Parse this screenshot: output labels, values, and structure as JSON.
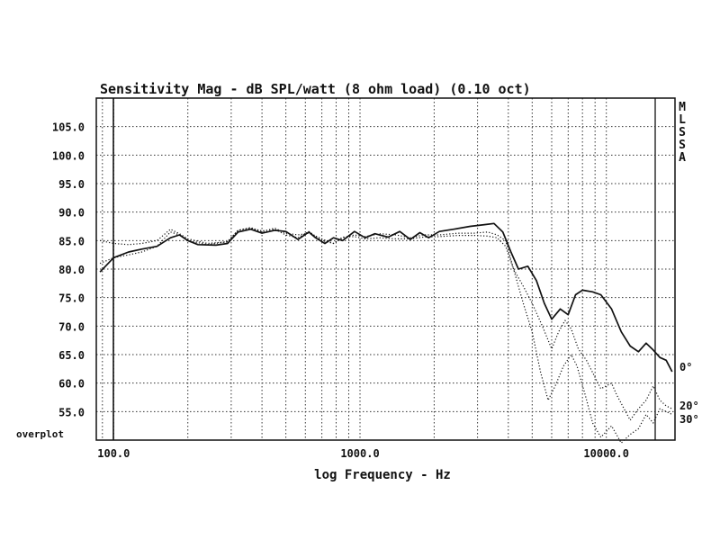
{
  "chart_data": {
    "type": "line",
    "title": "Sensitivity Mag - dB SPL/watt (8 ohm load) (0.10 oct)",
    "xlabel": "log Frequency - Hz",
    "ylabel": "",
    "x_scale": "log",
    "xlim": [
      85,
      19000
    ],
    "ylim": [
      50,
      110
    ],
    "y_ticks": [
      "105.0",
      "100.0",
      "95.0",
      "90.0",
      "85.0",
      "80.0",
      "75.0",
      "70.0",
      "65.0",
      "60.0",
      "55.0"
    ],
    "x_tick_labels": [
      {
        "value": 100,
        "label": "100.0"
      },
      {
        "value": 1000,
        "label": "1000.0"
      },
      {
        "value": 10000,
        "label": "10000.0"
      }
    ],
    "bottom_label": "overplot",
    "side_label_letters": [
      "M",
      "L",
      "S",
      "S",
      "A"
    ],
    "grid": true,
    "series": [
      {
        "name": "0°",
        "style": "solid",
        "points": [
          [
            88,
            79.5
          ],
          [
            100,
            82
          ],
          [
            115,
            83
          ],
          [
            130,
            83.5
          ],
          [
            150,
            84
          ],
          [
            170,
            85.5
          ],
          [
            185,
            86
          ],
          [
            200,
            85
          ],
          [
            220,
            84.3
          ],
          [
            260,
            84.2
          ],
          [
            290,
            84.5
          ],
          [
            320,
            86.5
          ],
          [
            360,
            87
          ],
          [
            400,
            86.3
          ],
          [
            450,
            86.8
          ],
          [
            500,
            86.6
          ],
          [
            560,
            85.2
          ],
          [
            620,
            86.5
          ],
          [
            660,
            85.5
          ],
          [
            720,
            84.5
          ],
          [
            780,
            85.5
          ],
          [
            850,
            85
          ],
          [
            950,
            86.6
          ],
          [
            1050,
            85.5
          ],
          [
            1150,
            86.2
          ],
          [
            1300,
            85.6
          ],
          [
            1450,
            86.6
          ],
          [
            1600,
            85.2
          ],
          [
            1750,
            86.4
          ],
          [
            1900,
            85.5
          ],
          [
            2100,
            86.6
          ],
          [
            2400,
            87
          ],
          [
            2800,
            87.5
          ],
          [
            3200,
            87.8
          ],
          [
            3500,
            88
          ],
          [
            3800,
            86.5
          ],
          [
            4100,
            83
          ],
          [
            4400,
            80
          ],
          [
            4800,
            80.5
          ],
          [
            5200,
            78
          ],
          [
            5600,
            74
          ],
          [
            6000,
            71.2
          ],
          [
            6500,
            73
          ],
          [
            7000,
            72
          ],
          [
            7500,
            75.5
          ],
          [
            8000,
            76.3
          ],
          [
            8800,
            76
          ],
          [
            9500,
            75.5
          ],
          [
            10500,
            73
          ],
          [
            11500,
            69
          ],
          [
            12500,
            66.5
          ],
          [
            13500,
            65.5
          ],
          [
            14500,
            67
          ],
          [
            15500,
            65.8
          ],
          [
            16500,
            64.5
          ],
          [
            17500,
            64
          ],
          [
            18500,
            62
          ]
        ]
      },
      {
        "name": "20°",
        "style": "dotted",
        "points": [
          [
            88,
            81
          ],
          [
            100,
            82
          ],
          [
            115,
            82.5
          ],
          [
            130,
            83
          ],
          [
            150,
            84
          ],
          [
            170,
            86.5
          ],
          [
            185,
            86
          ],
          [
            200,
            85
          ],
          [
            240,
            84.3
          ],
          [
            290,
            84.8
          ],
          [
            320,
            86.8
          ],
          [
            360,
            87.2
          ],
          [
            400,
            86.7
          ],
          [
            450,
            87
          ],
          [
            500,
            86
          ],
          [
            560,
            85.5
          ],
          [
            620,
            86.6
          ],
          [
            700,
            85
          ],
          [
            780,
            84.5
          ],
          [
            850,
            85.5
          ],
          [
            950,
            86
          ],
          [
            1050,
            85.7
          ],
          [
            1200,
            86.2
          ],
          [
            1400,
            86
          ],
          [
            1600,
            85.5
          ],
          [
            1800,
            86
          ],
          [
            2100,
            86
          ],
          [
            2500,
            86.3
          ],
          [
            2900,
            86.3
          ],
          [
            3300,
            86.5
          ],
          [
            3600,
            86
          ],
          [
            3900,
            85
          ],
          [
            4200,
            80
          ],
          [
            4600,
            77
          ],
          [
            5000,
            74
          ],
          [
            5500,
            70
          ],
          [
            6000,
            66
          ],
          [
            6400,
            69
          ],
          [
            6800,
            71
          ],
          [
            7200,
            69.5
          ],
          [
            7700,
            66
          ],
          [
            8300,
            64
          ],
          [
            9000,
            61
          ],
          [
            9500,
            59
          ],
          [
            10500,
            60
          ],
          [
            11000,
            58
          ],
          [
            11800,
            55.5
          ],
          [
            12500,
            53.5
          ],
          [
            13500,
            55.5
          ],
          [
            14500,
            57
          ],
          [
            15500,
            59.5
          ],
          [
            16500,
            57
          ],
          [
            17500,
            56
          ],
          [
            18500,
            55.5
          ]
        ]
      },
      {
        "name": "30°",
        "style": "dotted",
        "points": [
          [
            88,
            85
          ],
          [
            100,
            84.5
          ],
          [
            115,
            84.3
          ],
          [
            130,
            84.5
          ],
          [
            150,
            85
          ],
          [
            170,
            87
          ],
          [
            185,
            86.2
          ],
          [
            200,
            85.3
          ],
          [
            240,
            84.5
          ],
          [
            290,
            84.8
          ],
          [
            320,
            86.8
          ],
          [
            360,
            87.3
          ],
          [
            400,
            86.5
          ],
          [
            450,
            87.2
          ],
          [
            500,
            86.3
          ],
          [
            560,
            86
          ],
          [
            620,
            86.3
          ],
          [
            700,
            85.3
          ],
          [
            780,
            84.5
          ],
          [
            850,
            85.6
          ],
          [
            950,
            85.7
          ],
          [
            1050,
            85.3
          ],
          [
            1200,
            85.5
          ],
          [
            1400,
            85.3
          ],
          [
            1600,
            85.3
          ],
          [
            1800,
            85.6
          ],
          [
            2100,
            85.7
          ],
          [
            2500,
            85.9
          ],
          [
            2900,
            85.9
          ],
          [
            3300,
            85.8
          ],
          [
            3600,
            85.5
          ],
          [
            3900,
            84
          ],
          [
            4200,
            80
          ],
          [
            4600,
            74
          ],
          [
            5000,
            69
          ],
          [
            5400,
            62
          ],
          [
            5800,
            57
          ],
          [
            6200,
            59.5
          ],
          [
            6700,
            63
          ],
          [
            7200,
            65
          ],
          [
            7600,
            63
          ],
          [
            8200,
            58
          ],
          [
            8800,
            53
          ],
          [
            9500,
            50.5
          ],
          [
            10500,
            52.5
          ],
          [
            11500,
            49.5
          ],
          [
            12500,
            51
          ],
          [
            13500,
            52
          ],
          [
            14500,
            54.5
          ],
          [
            15500,
            53
          ],
          [
            16500,
            55.5
          ],
          [
            17500,
            55
          ],
          [
            18500,
            54.5
          ]
        ]
      }
    ]
  }
}
